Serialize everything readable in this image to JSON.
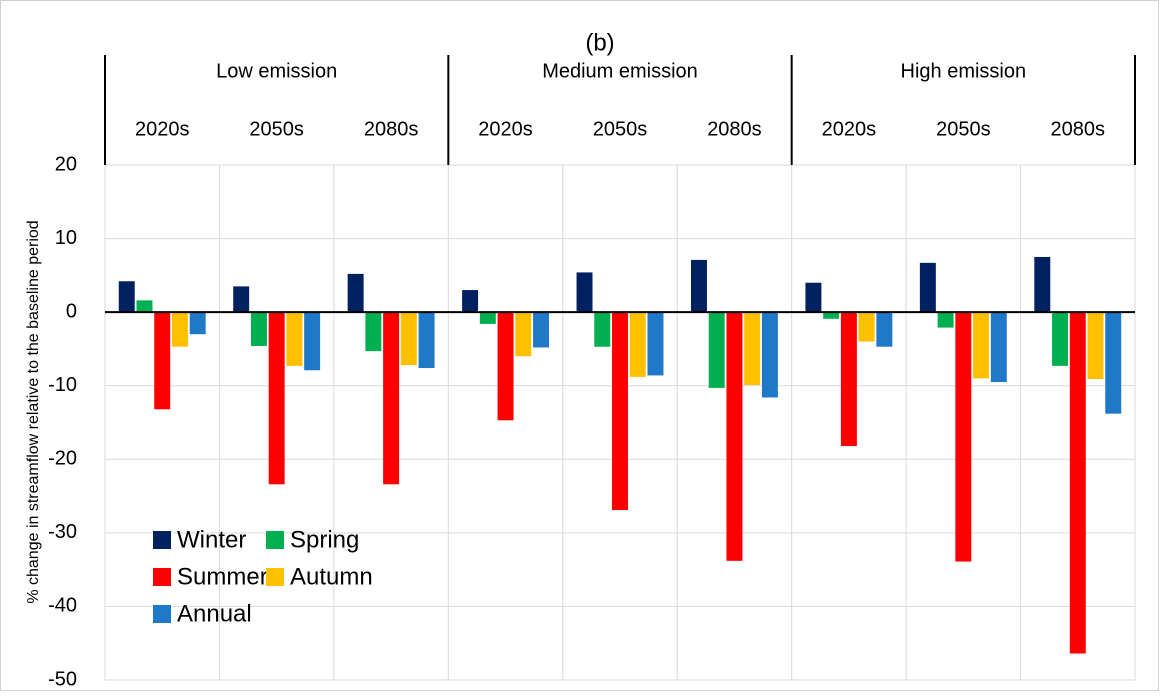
{
  "chart_data": {
    "type": "bar",
    "title": "(b)",
    "y_label": "% change in streamflow relative to the baseline period",
    "groups": [
      {
        "name": "Low emission",
        "categories": [
          "2020s",
          "2050s",
          "2080s"
        ]
      },
      {
        "name": "Medium emission",
        "categories": [
          "2020s",
          "2050s",
          "2080s"
        ]
      },
      {
        "name": "High emission",
        "categories": [
          "2020s",
          "2050s",
          "2080s"
        ]
      }
    ],
    "series": [
      {
        "name": "Winter",
        "color": "#002060",
        "values": [
          4.2,
          3.5,
          5.2,
          3.0,
          5.4,
          7.1,
          4.0,
          6.7,
          7.5
        ]
      },
      {
        "name": "Spring",
        "color": "#00b050",
        "values": [
          1.6,
          -4.6,
          -5.3,
          -1.6,
          -4.7,
          -10.3,
          -0.9,
          -2.1,
          -7.3
        ]
      },
      {
        "name": "Summer",
        "color": "#ff0000",
        "values": [
          -13.2,
          -23.4,
          -23.4,
          -14.7,
          -26.9,
          -33.8,
          -18.2,
          -33.9,
          -46.4
        ]
      },
      {
        "name": "Autumn",
        "color": "#ffc000",
        "values": [
          -4.7,
          -7.3,
          -7.2,
          -6.0,
          -8.8,
          -9.9,
          -4.0,
          -9.0,
          -9.1
        ]
      },
      {
        "name": "Annual",
        "color": "#1f78c8",
        "values": [
          -3.0,
          -7.9,
          -7.6,
          -4.8,
          -8.6,
          -11.6,
          -4.7,
          -9.5,
          -13.8
        ]
      }
    ],
    "ylim": [
      -50,
      20
    ],
    "yticks": [
      20,
      10,
      0,
      -10,
      -20,
      -30,
      -40,
      -50
    ],
    "grid": true,
    "legend": "lower left"
  }
}
